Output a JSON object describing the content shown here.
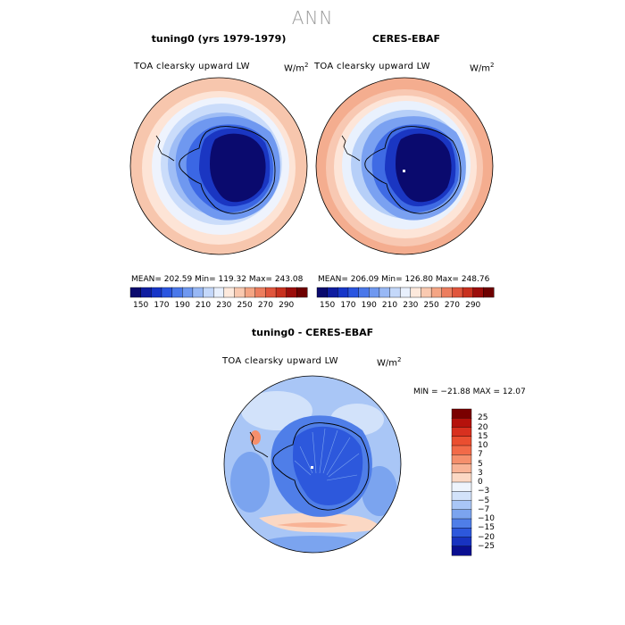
{
  "title": "ANN",
  "panels": [
    {
      "title": "tuning0 (yrs 1979-1979)",
      "field": "TOA clearsky upward LW",
      "units_base": "W/m",
      "units_exp": "2",
      "stats": "MEAN= 202.59   Min= 119.32   Max= 243.08"
    },
    {
      "title": "CERES-EBAF",
      "field": "TOA clearsky upward LW",
      "units_base": "W/m",
      "units_exp": "2",
      "stats": "MEAN= 206.09   Min= 126.80   Max= 248.76"
    }
  ],
  "colorbar_top": {
    "ticks": [
      "150",
      "170",
      "190",
      "210",
      "230",
      "250",
      "270",
      "290"
    ],
    "colors": [
      "#0a0a6e",
      "#0f1da0",
      "#1736c8",
      "#2a55e0",
      "#4a78ea",
      "#6f98f0",
      "#98b8f5",
      "#c4d8fa",
      "#e8f0fd",
      "#fde9dc",
      "#f9c9b0",
      "#f4a584",
      "#ec7d5e",
      "#e0553c",
      "#c8301e",
      "#9c0d0a",
      "#6e0000"
    ]
  },
  "diff": {
    "title": "tuning0 - CERES-EBAF",
    "field": "TOA clearsky upward LW",
    "units_base": "W/m",
    "units_exp": "2",
    "minmax": "MIN = −21.88  MAX =   12.07",
    "levels": [
      "25",
      "20",
      "15",
      "10",
      "7",
      "5",
      "3",
      "0",
      "−3",
      "−5",
      "−7",
      "−10",
      "−15",
      "−20",
      "−25"
    ],
    "colors": [
      "#7a0000",
      "#b5120c",
      "#d8301f",
      "#ea4e30",
      "#f26a48",
      "#f58f6c",
      "#f8b396",
      "#fbd8c4",
      "#eef4fc",
      "#d2e2fa",
      "#a9c6f6",
      "#7ba4ef",
      "#4f7ee8",
      "#2d58dc",
      "#1833c0",
      "#0a0f90"
    ]
  },
  "chart_data": [
    {
      "type": "heatmap",
      "title": "tuning0 (yrs 1979-1979)",
      "variable": "TOA clearsky upward LW",
      "units": "W/m2",
      "projection": "south polar stereographic",
      "mean": 202.59,
      "min": 119.32,
      "max": 243.08,
      "levels": [
        150,
        160,
        170,
        180,
        190,
        200,
        210,
        220,
        230,
        240,
        250,
        260,
        270,
        280,
        290
      ]
    },
    {
      "type": "heatmap",
      "title": "CERES-EBAF",
      "variable": "TOA clearsky upward LW",
      "units": "W/m2",
      "projection": "south polar stereographic",
      "mean": 206.09,
      "min": 126.8,
      "max": 248.76,
      "levels": [
        150,
        160,
        170,
        180,
        190,
        200,
        210,
        220,
        230,
        240,
        250,
        260,
        270,
        280,
        290
      ]
    },
    {
      "type": "heatmap",
      "title": "tuning0 - CERES-EBAF",
      "variable": "TOA clearsky upward LW",
      "units": "W/m2",
      "projection": "south polar stereographic",
      "min": -21.88,
      "max": 12.07,
      "levels": [
        -25,
        -20,
        -15,
        -10,
        -7,
        -5,
        -3,
        0,
        3,
        5,
        7,
        10,
        15,
        20,
        25
      ]
    }
  ]
}
